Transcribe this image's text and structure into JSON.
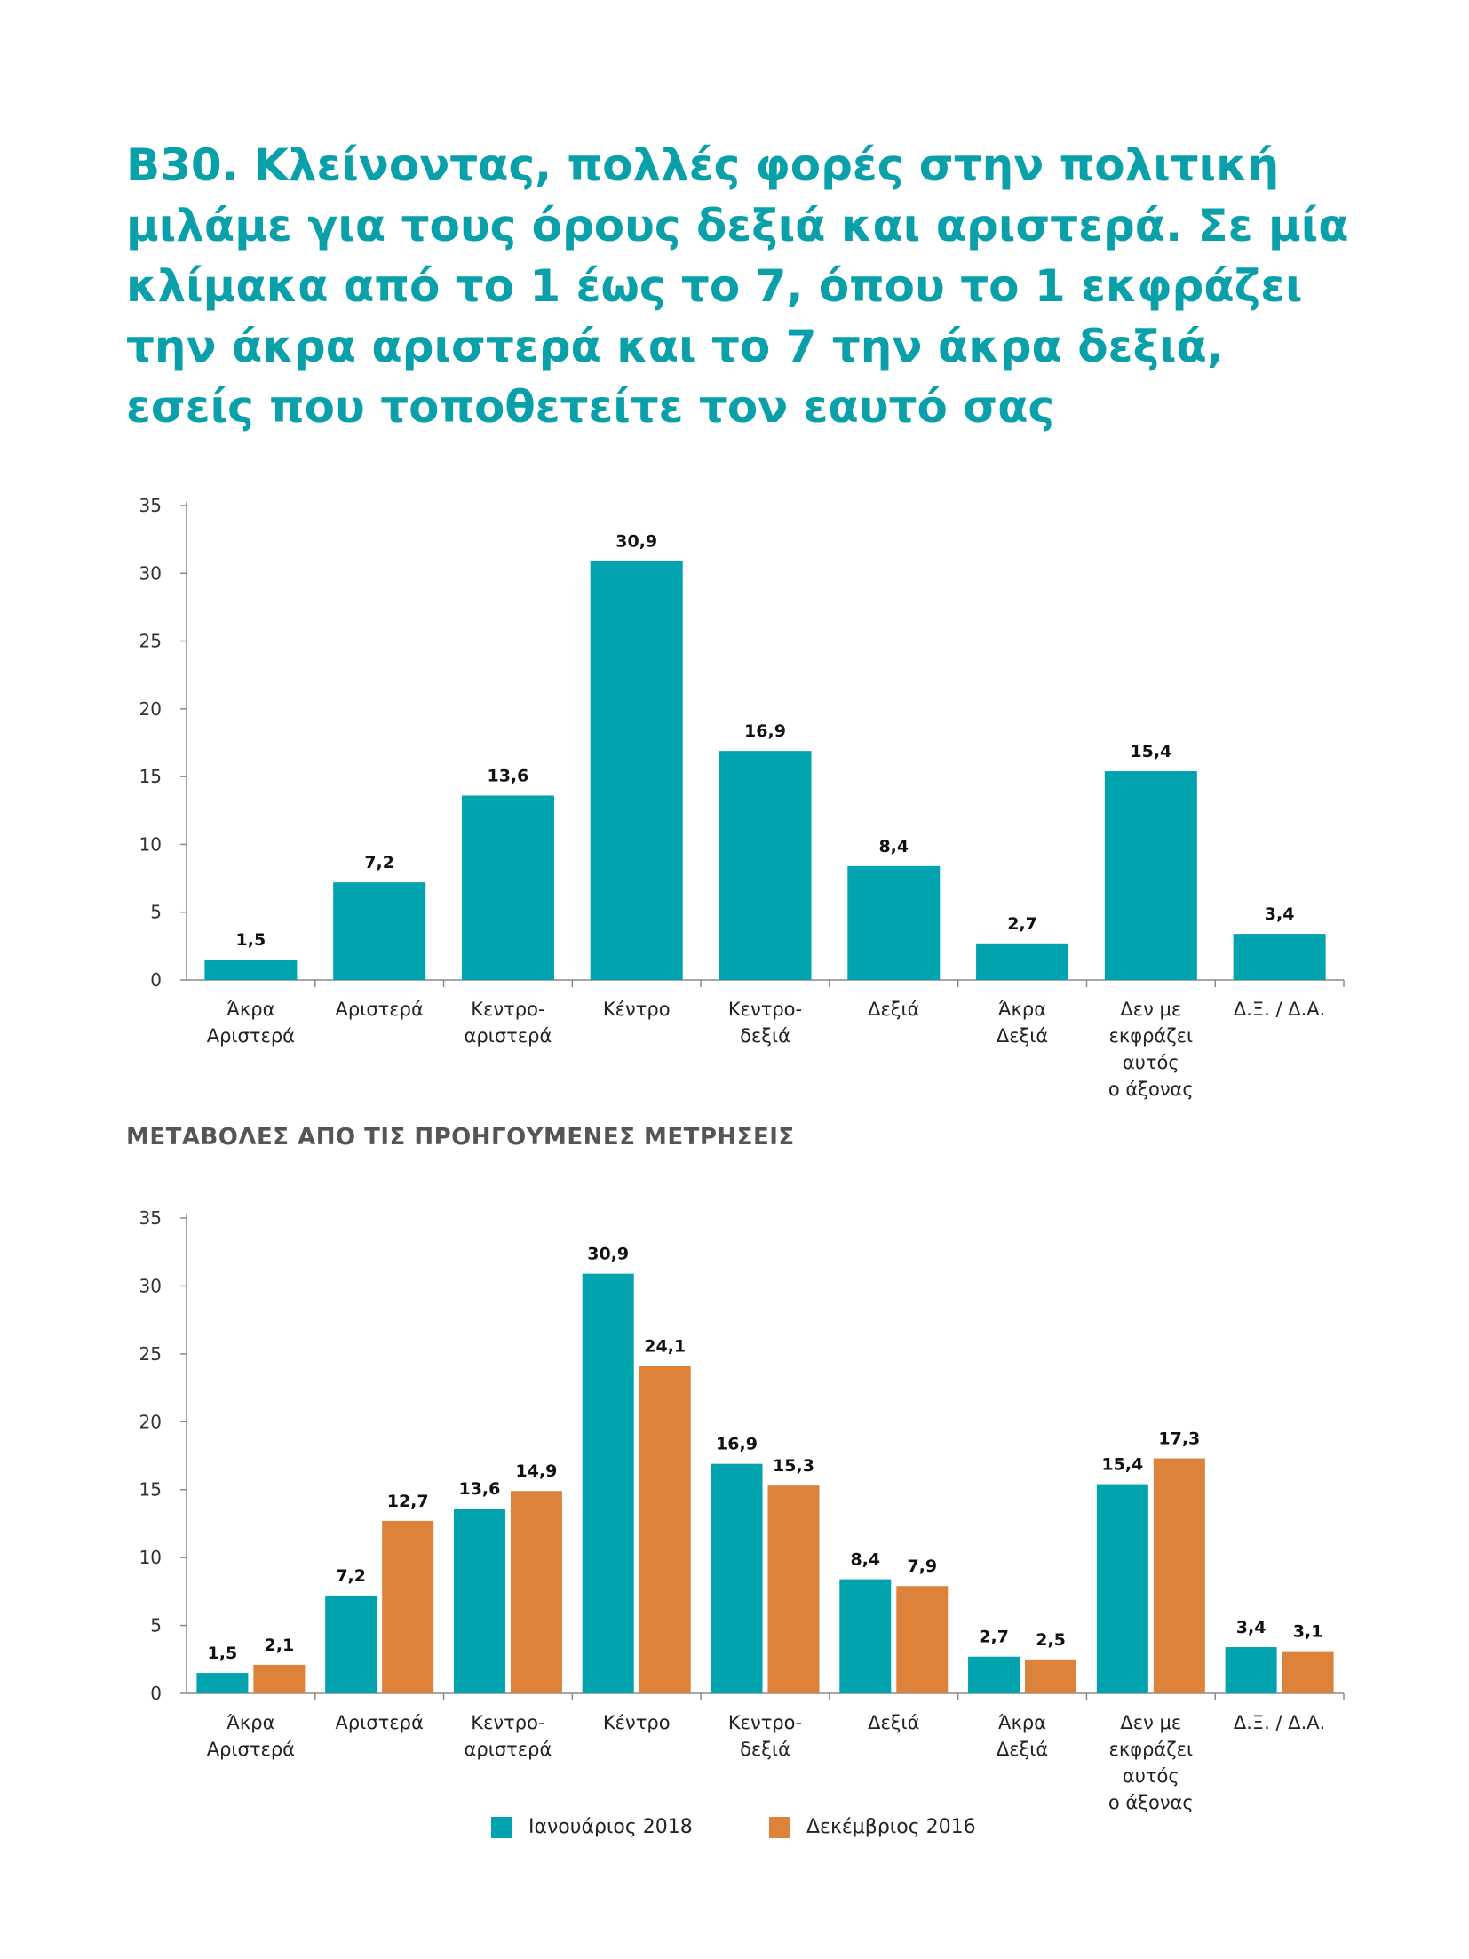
{
  "title": "B30. Κλείνοντας, πολλές φορές στην πολιτική μιλάμε για τους όρους δεξιά και αριστερά. Σε μία κλίμακα από το 1 έως το 7, όπου το 1 εκφράζει την άκρα αριστερά και το 7 την άκρα δεξιά, εσείς που τοποθετείτε τον εαυτό σας",
  "subtitle": "ΜΕΤΑΒΟΛΕΣ ΑΠΟ ΤΙΣ ΠΡΟΗΓΟΥΜΕΝΕΣ ΜΕΤΡΗΣΕΙΣ",
  "colors": {
    "teal": "#00a3ae",
    "orange": "#dd823b",
    "title": "#0aa0aa"
  },
  "chart_data": [
    {
      "type": "bar",
      "categories": [
        [
          "Άκρα",
          "Αριστερά"
        ],
        [
          "Αριστερά"
        ],
        [
          "Κεντρο-",
          "αριστερά"
        ],
        [
          "Κέντρο"
        ],
        [
          "Κεντρο-",
          "δεξιά"
        ],
        [
          "Δεξιά"
        ],
        [
          "Άκρα",
          "Δεξιά"
        ],
        [
          "Δεν με",
          "εκφράζει",
          "αυτός",
          "ο άξονας"
        ],
        [
          "Δ.Ξ. / Δ.Α."
        ]
      ],
      "series": [
        {
          "values": [
            1.5,
            7.2,
            13.6,
            30.9,
            16.9,
            8.4,
            2.7,
            15.4,
            3.4
          ],
          "labels": [
            "1,5",
            "7,2",
            "13,6",
            "30,9",
            "16,9",
            "8,4",
            "2,7",
            "15,4",
            "3,4"
          ],
          "color": "#00a3ae"
        }
      ],
      "ylim": [
        0,
        35
      ],
      "yticks": [
        0,
        5,
        10,
        15,
        20,
        25,
        30,
        35
      ],
      "grid": false
    },
    {
      "type": "bar",
      "categories": [
        [
          "Άκρα",
          "Αριστερά"
        ],
        [
          "Αριστερά"
        ],
        [
          "Κεντρο-",
          "αριστερά"
        ],
        [
          "Κέντρο"
        ],
        [
          "Κεντρο-",
          "δεξιά"
        ],
        [
          "Δεξιά"
        ],
        [
          "Άκρα",
          "Δεξιά"
        ],
        [
          "Δεν με",
          "εκφράζει",
          "αυτός",
          "ο άξονας"
        ],
        [
          "Δ.Ξ. / Δ.Α."
        ]
      ],
      "series": [
        {
          "name": "Ιανουάριος 2018",
          "values": [
            1.5,
            7.2,
            13.6,
            30.9,
            16.9,
            8.4,
            2.7,
            15.4,
            3.4
          ],
          "labels": [
            "1,5",
            "7,2",
            "13,6",
            "30,9",
            "16,9",
            "8,4",
            "2,7",
            "15,4",
            "3,4"
          ],
          "color": "#00a3ae"
        },
        {
          "name": "Δεκέμβριος 2016",
          "values": [
            2.1,
            12.7,
            14.9,
            24.1,
            15.3,
            7.9,
            2.5,
            17.3,
            3.1
          ],
          "labels": [
            "2,1",
            "12,7",
            "14,9",
            "24,1",
            "15,3",
            "7,9",
            "2,5",
            "17,3",
            "3,1"
          ],
          "color": "#dd823b"
        }
      ],
      "ylim": [
        0,
        35
      ],
      "yticks": [
        0,
        5,
        10,
        15,
        20,
        25,
        30,
        35
      ],
      "grid": false,
      "legend": "bottom-center"
    }
  ]
}
